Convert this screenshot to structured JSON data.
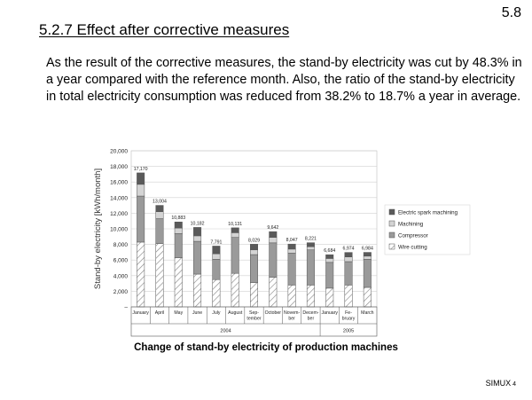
{
  "slide": {
    "page_number": "5.8",
    "title": "5.2.7 Effect after corrective measures",
    "body": "As the result of the corrective measures, the stand-by electricity was cut by 48.3% in a year compared with the reference month. Also, the ratio of the stand-by electricity in total electricity consumption was reduced from 38.2% to 18.7% a year in average.",
    "footer_brand": "SIMUX",
    "footer_num": "4"
  },
  "chart_data": {
    "type": "bar",
    "stacked": true,
    "caption": "Change of stand-by electricity of production machines",
    "ylabel": "Stand-by electricity [kWh/month]",
    "xlabel": "",
    "ylim": [
      0,
      20000
    ],
    "yticks": [
      "–",
      "2,000",
      "4,000",
      "6,000",
      "8,000",
      "10,000",
      "12,000",
      "14,000",
      "16,000",
      "18,000",
      "20,000"
    ],
    "categories": [
      "January",
      "April",
      "May",
      "June",
      "July",
      "August",
      "Sep-\ntember",
      "October",
      "Novem-\nber",
      "Decem-\nber",
      "January",
      "Fe-\nbruary",
      "March"
    ],
    "year_groups": [
      {
        "label": "2004",
        "from": 0,
        "to": 9
      },
      {
        "label": "2005",
        "from": 10,
        "to": 12
      }
    ],
    "totals_labels": [
      "17,170",
      "13,004",
      "10,883",
      "10,182",
      "7,791",
      "10,131",
      "8,029",
      "9,642",
      "8,047",
      "8,221",
      "6,684",
      "6,974",
      "6,984"
    ],
    "series": [
      {
        "name": "Wire cutting",
        "color": "#ffffff",
        "pattern": "hatch",
        "values": [
          8300,
          8100,
          6300,
          4200,
          3500,
          4300,
          3100,
          3800,
          2800,
          2800,
          2400,
          2800,
          2500
        ]
      },
      {
        "name": "Compressor",
        "color": "#9a9a9a",
        "values": [
          5900,
          3200,
          3100,
          4200,
          2600,
          4600,
          3600,
          4400,
          4100,
          4500,
          3300,
          3000,
          3600
        ]
      },
      {
        "name": "Machining",
        "color": "#d4d4d4",
        "values": [
          1500,
          900,
          700,
          700,
          700,
          600,
          600,
          700,
          500,
          400,
          500,
          600,
          400
        ]
      },
      {
        "name": "Electric spark machining",
        "color": "#5a5a5a",
        "values": [
          1470,
          804,
          783,
          1082,
          991,
          631,
          729,
          742,
          647,
          521,
          484,
          574,
          484
        ]
      }
    ],
    "legend_order": [
      3,
      2,
      1,
      0
    ],
    "legend_position": "right"
  }
}
